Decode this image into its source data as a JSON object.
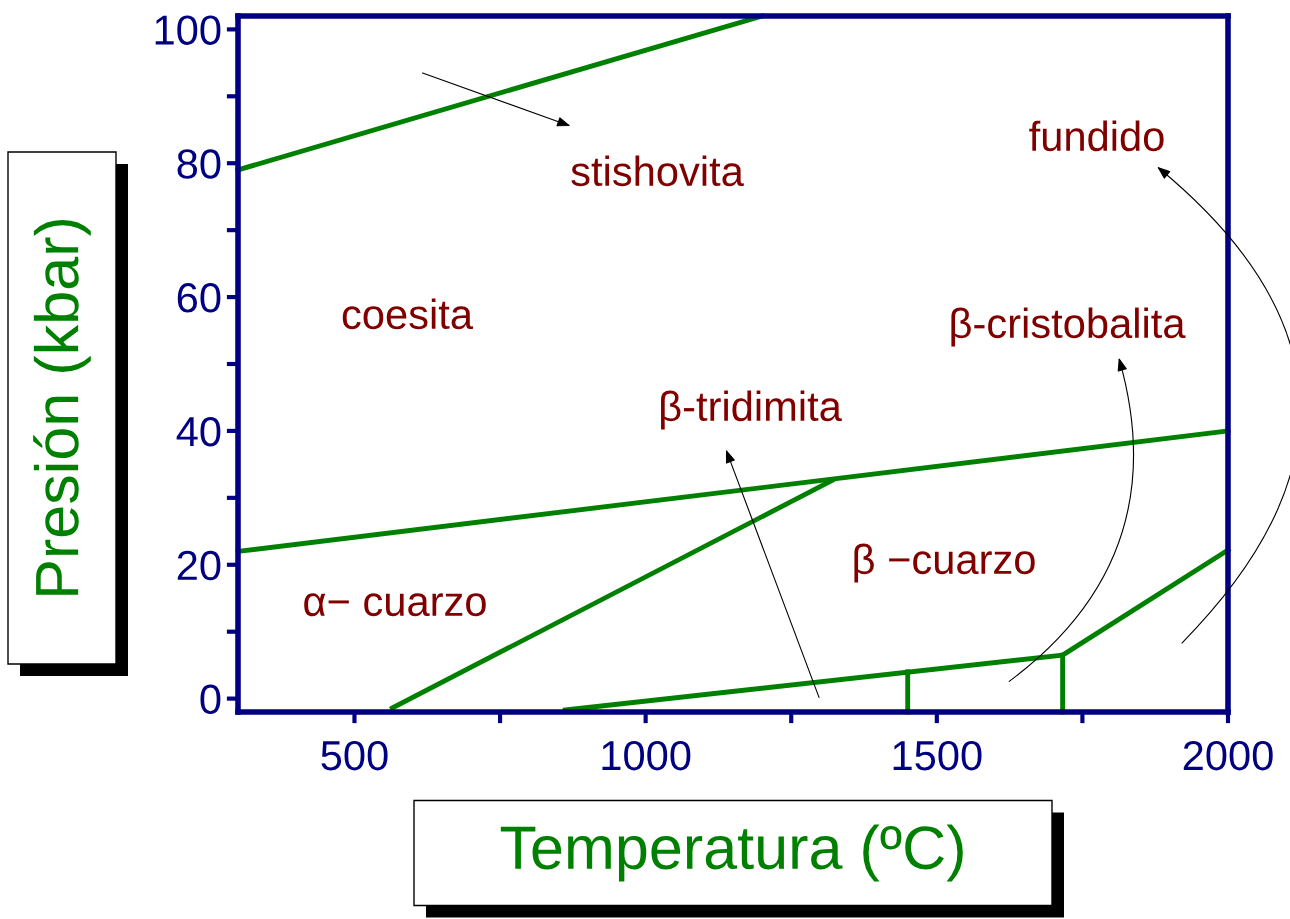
{
  "chart_data": {
    "type": "line",
    "xlabel": "Temperatura (ºC)",
    "ylabel": "Presión (kbar)",
    "xlim": [
      300,
      2000
    ],
    "ylim": [
      -2,
      102
    ],
    "xticks": [
      500,
      {
        "value": 750,
        "label": null
      },
      1000,
      {
        "value": 1250,
        "label": null
      },
      1500,
      {
        "value": 1750,
        "label": null
      },
      2000
    ],
    "yticks": [
      0,
      {
        "value": 10,
        "label": null
      },
      20,
      {
        "value": 30,
        "label": null
      },
      40,
      {
        "value": 50,
        "label": null
      },
      60,
      {
        "value": 70,
        "label": null
      },
      80,
      {
        "value": 90,
        "label": null
      },
      100
    ],
    "marker": "none",
    "line_style": "solid",
    "grid": false,
    "legend": false,
    "series": [
      {
        "color": "#008000",
        "x": [
          300,
          1200
        ],
        "values": [
          79,
          102
        ]
      },
      {
        "color": "#008000",
        "x": [
          300,
          2000
        ],
        "values": [
          22,
          40
        ]
      },
      {
        "color": "#008000",
        "x": [
          565,
          1320
        ],
        "values": [
          -1.4,
          32.6
        ]
      },
      {
        "color": "#008000",
        "x": [
          862,
          1716,
          2000
        ],
        "values": [
          -1.7,
          6.5,
          22.2
        ]
      },
      {
        "color": "#008000",
        "x": [
          1450,
          1450
        ],
        "values": [
          -2,
          4
        ]
      },
      {
        "color": "#008000",
        "x": [
          1716,
          1716
        ],
        "values": [
          -2,
          6.5
        ]
      }
    ],
    "annotations": [
      "stishovita",
      "coesita",
      "β-tridimita",
      "β-cristobalita",
      "fundido",
      "β −cuarzo",
      "α− cuarzo"
    ]
  }
}
